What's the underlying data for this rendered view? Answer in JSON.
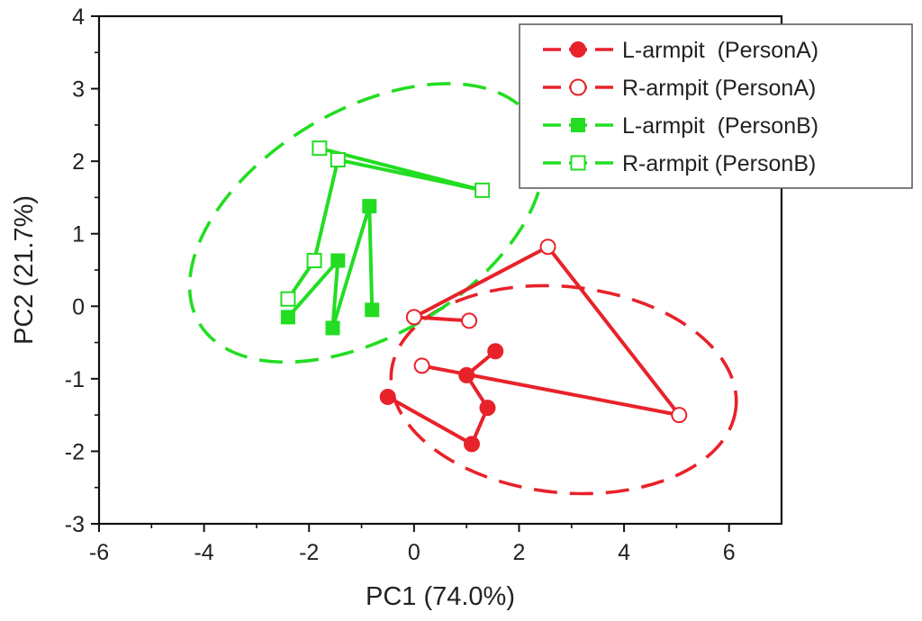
{
  "chart_data": {
    "type": "scatter",
    "title": "",
    "xlabel": "PC1 (74.0%)",
    "ylabel": "PC2 (21.7%)",
    "xlim": [
      -6,
      7
    ],
    "ylim": [
      -3,
      4
    ],
    "xticks": [
      -6,
      -4,
      -2,
      0,
      2,
      4,
      6
    ],
    "yticks": [
      -3,
      -2,
      -1,
      0,
      1,
      2,
      3,
      4
    ],
    "grid": false,
    "legend_position": "top-right",
    "series": [
      {
        "name": "L-armpit  (PersonA)",
        "color": "#e8222a",
        "marker": "circle",
        "filled": true,
        "points": [
          [
            -0.5,
            -1.25
          ],
          [
            1.1,
            -1.9
          ],
          [
            1.4,
            -1.4
          ],
          [
            1.0,
            -0.95
          ],
          [
            1.55,
            -0.62
          ]
        ]
      },
      {
        "name": "R-armpit (PersonA)",
        "color": "#e8222a",
        "marker": "circle",
        "filled": false,
        "points": [
          [
            1.05,
            -0.2
          ],
          [
            0.0,
            -0.15
          ],
          [
            2.55,
            0.82
          ],
          [
            5.05,
            -1.5
          ],
          [
            0.15,
            -0.82
          ]
        ]
      },
      {
        "name": "L-armpit  (PersonB)",
        "color": "#22dd22",
        "marker": "square",
        "filled": true,
        "points": [
          [
            -0.8,
            -0.05
          ],
          [
            -0.85,
            1.38
          ],
          [
            -1.55,
            -0.3
          ],
          [
            -1.45,
            0.63
          ],
          [
            -2.4,
            -0.15
          ]
        ]
      },
      {
        "name": "R-armpit (PersonB)",
        "color": "#22dd22",
        "marker": "square",
        "filled": false,
        "points": [
          [
            -2.4,
            0.1
          ],
          [
            -1.9,
            0.63
          ],
          [
            -1.45,
            2.02
          ],
          [
            1.3,
            1.6
          ],
          [
            -1.8,
            2.18
          ]
        ]
      }
    ],
    "ellipses": [
      {
        "group": "PersonA",
        "color": "#e8222a",
        "center": [
          2.85,
          -1.15
        ],
        "rx": 3.3,
        "ry": 1.42,
        "angle_deg": -6
      },
      {
        "group": "PersonB",
        "color": "#22dd22",
        "center": [
          -0.9,
          1.15
        ],
        "rx": 3.72,
        "ry": 1.55,
        "angle_deg": 31
      }
    ]
  }
}
